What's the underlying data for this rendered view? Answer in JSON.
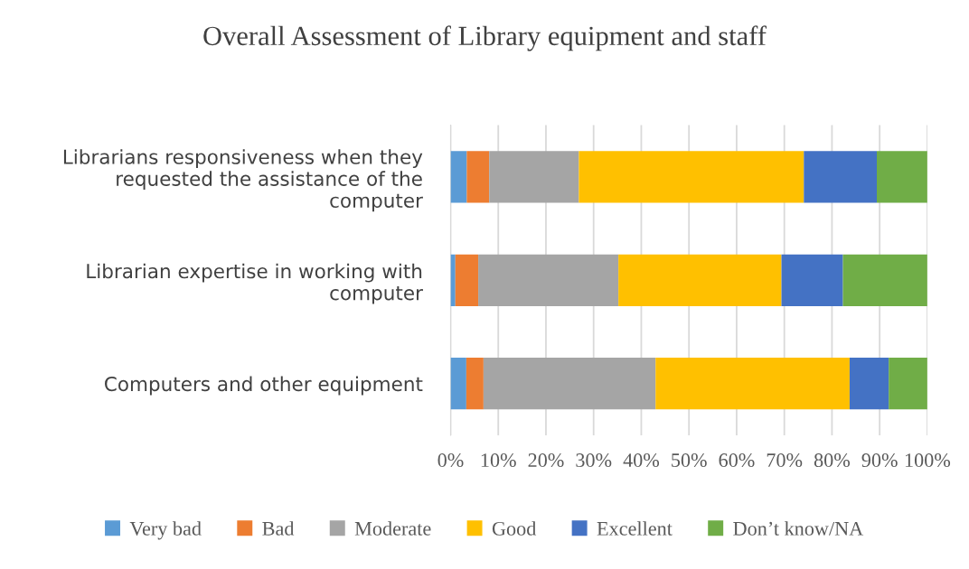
{
  "chart_data": {
    "type": "bar",
    "orientation": "horizontal",
    "stacked": true,
    "title": "Overall Assessment of Library equipment and staff",
    "categories": [
      "Librarians responsiveness when they\nrequested the assistance of the\ncomputer",
      "Librarian expertise in working with\ncomputer",
      "Computers and other equipment"
    ],
    "series": [
      {
        "name": "Very bad",
        "color": "#5b9bd5",
        "values": [
          3.4,
          1.0,
          3.3
        ]
      },
      {
        "name": "Bad",
        "color": "#ed7d31",
        "values": [
          4.7,
          4.8,
          3.6
        ]
      },
      {
        "name": "Moderate",
        "color": "#a5a5a5",
        "values": [
          18.8,
          29.4,
          36.1
        ]
      },
      {
        "name": "Good",
        "color": "#ffc000",
        "values": [
          47.2,
          34.2,
          40.7
        ]
      },
      {
        "name": "Excellent",
        "color": "#4472c4",
        "values": [
          15.3,
          12.9,
          8.2
        ]
      },
      {
        "name": "Don’t know/NA",
        "color": "#70ad47",
        "values": [
          10.6,
          17.7,
          8.1
        ]
      }
    ],
    "xlim": [
      0,
      100
    ],
    "xticks": [
      {
        "value": 0,
        "label": "0%"
      },
      {
        "value": 10,
        "label": "10%"
      },
      {
        "value": 20,
        "label": "20%"
      },
      {
        "value": 30,
        "label": "30%"
      },
      {
        "value": 40,
        "label": "40%"
      },
      {
        "value": 50,
        "label": "50%"
      },
      {
        "value": 60,
        "label": "60%"
      },
      {
        "value": 70,
        "label": "70%"
      },
      {
        "value": 80,
        "label": "80%"
      },
      {
        "value": 90,
        "label": "90%"
      },
      {
        "value": 100,
        "label": "100%"
      }
    ],
    "grid": "x",
    "legend": "bottom"
  }
}
